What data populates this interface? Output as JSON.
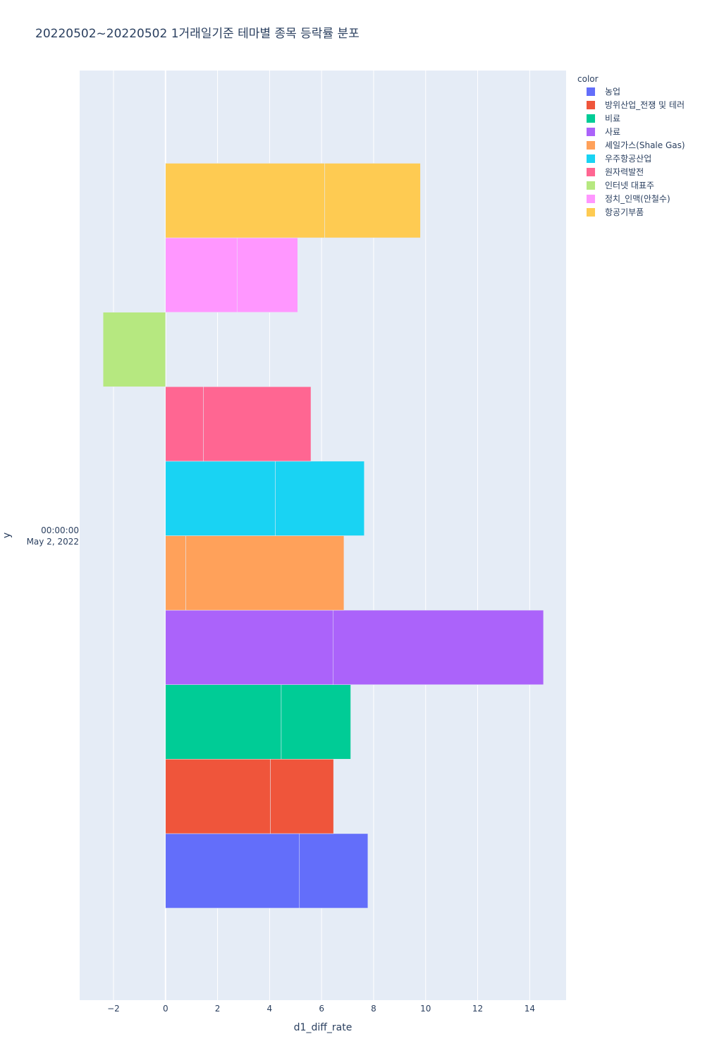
{
  "chart_data": {
    "type": "bar",
    "orientation": "horizontal",
    "barmode": "relative",
    "title": "20220502~20220502 1거래일기준 테마별 종목 등락률 분포",
    "xlabel": "d1_diff_rate",
    "ylabel": "y",
    "y_category_label": [
      "00:00:00",
      "May 2, 2022"
    ],
    "xlim": [
      -3.3,
      15.4
    ],
    "xticks": [
      -2,
      0,
      2,
      4,
      6,
      8,
      10,
      12,
      14
    ],
    "xtick_labels": [
      "−2",
      "0",
      "2",
      "4",
      "6",
      "8",
      "10",
      "12",
      "14"
    ],
    "grid": true,
    "legend_title": "color",
    "legend_position": "right",
    "series": [
      {
        "name": "농업",
        "color": "#636efa",
        "values": [
          5.15,
          2.63
        ]
      },
      {
        "name": "방위산업_전쟁 및 테러",
        "color": "#EF553B",
        "values": [
          4.03,
          2.43
        ]
      },
      {
        "name": "비료",
        "color": "#00cc96",
        "values": [
          4.45,
          2.67
        ]
      },
      {
        "name": "사료",
        "color": "#ab63fa",
        "values": [
          6.45,
          8.08
        ]
      },
      {
        "name": "셰일가스(Shale Gas)",
        "color": "#FFA15A",
        "values": [
          0.78,
          6.08
        ]
      },
      {
        "name": "우주항공산업",
        "color": "#19d3f3",
        "values": [
          4.22,
          3.42
        ]
      },
      {
        "name": "원자력발전",
        "color": "#FF6692",
        "values": [
          1.46,
          4.13
        ]
      },
      {
        "name": "인터넷 대표주",
        "color": "#B6E880",
        "values": [
          -2.4
        ]
      },
      {
        "name": "정치_인맥(안철수)",
        "color": "#FF97FF",
        "values": [
          2.75,
          2.33
        ]
      },
      {
        "name": "항공기부품",
        "color": "#FECB52",
        "values": [
          6.12,
          3.68
        ]
      }
    ]
  }
}
